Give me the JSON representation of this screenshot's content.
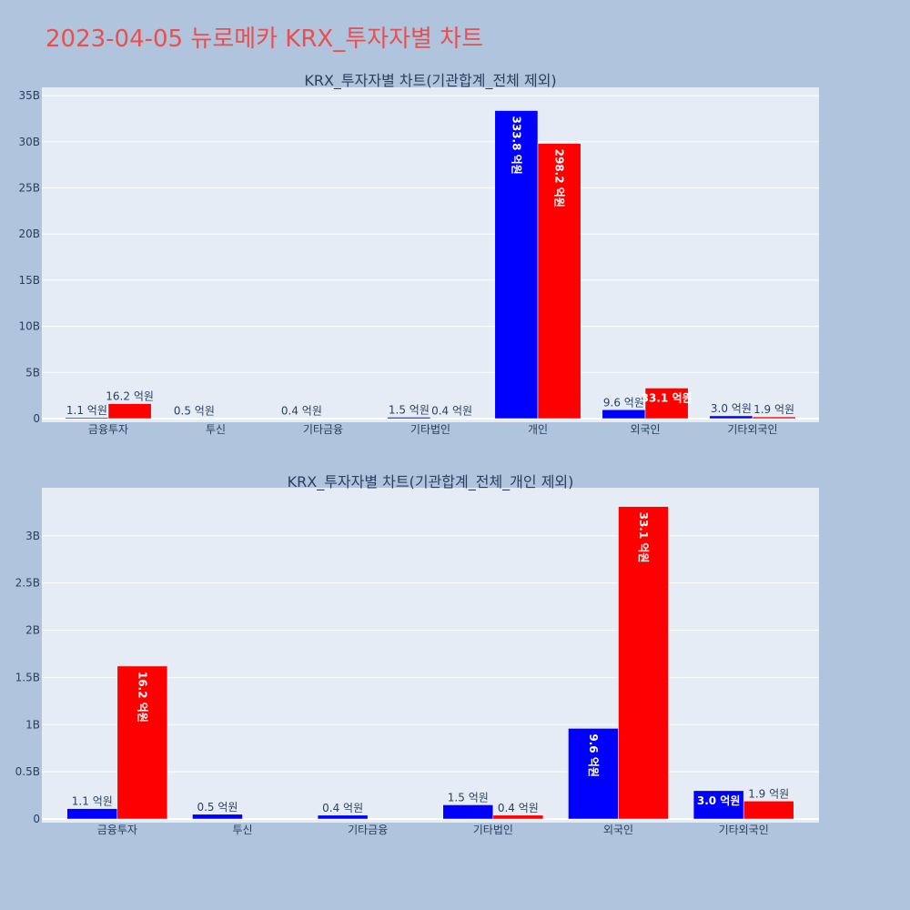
{
  "page": {
    "title": "2023-04-05 뉴로메카 KRX_투자자별 차트"
  },
  "colors": {
    "background": "#b0c4de",
    "plot_bg": "#e5ecf6",
    "series_a": "#0000ff",
    "series_b": "#ff0000",
    "title": "#e8504f"
  },
  "chart_data": [
    {
      "type": "bar",
      "title": "KRX_투자자별 차트(기관합계_전체 제외)",
      "categories": [
        "금융투자",
        "투신",
        "기타금융",
        "기타법인",
        "개인",
        "외국인",
        "기타외국인"
      ],
      "ylim": [
        0,
        35500000000
      ],
      "yticks": [
        0,
        5000000000,
        10000000000,
        15000000000,
        20000000000,
        25000000000,
        30000000000,
        35000000000
      ],
      "ytick_labels": [
        "0",
        "5B",
        "10B",
        "15B",
        "20B",
        "25B",
        "30B",
        "35B"
      ],
      "grid": true,
      "series": [
        {
          "values": [
            110000000,
            50000000,
            40000000,
            150000000,
            33380000000,
            960000000,
            300000000
          ],
          "labels": [
            "1.1 억원",
            "0.5 억원",
            "0.4 억원",
            "1.5 억원",
            "333.8 억원",
            "9.6 억원",
            "3.0 억원"
          ],
          "color": "#0000ff"
        },
        {
          "values": [
            1620000000,
            0,
            0,
            40000000,
            29820000000,
            3310000000,
            190000000
          ],
          "labels": [
            "16.2 억원",
            "",
            "",
            "0.4 억원",
            "298.2 억원",
            "33.1 억원",
            "1.9 억원"
          ],
          "color": "#ff0000"
        }
      ]
    },
    {
      "type": "bar",
      "title": "KRX_투자자별 차트(기관합계_전체_개인 제외)",
      "categories": [
        "금융투자",
        "투신",
        "기타금융",
        "기타법인",
        "외국인",
        "기타외국인"
      ],
      "ylim": [
        0,
        3470000000
      ],
      "yticks": [
        0,
        500000000,
        1000000000,
        1500000000,
        2000000000,
        2500000000,
        3000000000
      ],
      "ytick_labels": [
        "0",
        "0.5B",
        "1B",
        "1.5B",
        "2B",
        "2.5B",
        "3B"
      ],
      "grid": true,
      "series": [
        {
          "values": [
            110000000,
            50000000,
            40000000,
            150000000,
            960000000,
            300000000
          ],
          "labels": [
            "1.1 억원",
            "0.5 억원",
            "0.4 억원",
            "1.5 억원",
            "9.6 억원",
            "3.0 억원"
          ],
          "color": "#0000ff"
        },
        {
          "values": [
            1620000000,
            0,
            0,
            40000000,
            3310000000,
            190000000
          ],
          "labels": [
            "16.2 억원",
            "",
            "",
            "0.4 억원",
            "33.1 억원",
            "1.9 억원"
          ],
          "color": "#ff0000"
        }
      ]
    }
  ]
}
